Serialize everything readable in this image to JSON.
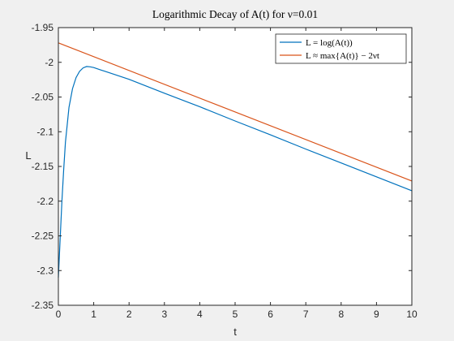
{
  "chart_data": {
    "type": "line",
    "title": "Logarithmic Decay of A(t) for ν=0.01",
    "xlabel": "t",
    "ylabel": "L",
    "xlim": [
      0,
      10
    ],
    "ylim": [
      -2.35,
      -1.95
    ],
    "xticks": [
      0,
      1,
      2,
      3,
      4,
      5,
      6,
      7,
      8,
      9,
      10
    ],
    "yticks": [
      -2.35,
      -2.3,
      -2.25,
      -2.2,
      -2.15,
      -2.1,
      -2.05,
      -2,
      -1.95
    ],
    "grid": false,
    "legend_position": "top-right",
    "series": [
      {
        "name": "L = log(A(t))",
        "color": "#0072BD",
        "x": [
          0,
          0.05,
          0.1,
          0.15,
          0.2,
          0.3,
          0.4,
          0.5,
          0.6,
          0.7,
          0.8,
          0.9,
          1.0,
          1.2,
          1.5,
          2,
          3,
          4,
          5,
          6,
          7,
          8,
          9,
          10
        ],
        "y": [
          -2.31,
          -2.255,
          -2.2,
          -2.155,
          -2.115,
          -2.065,
          -2.038,
          -2.022,
          -2.013,
          -2.008,
          -2.006,
          -2.0065,
          -2.0075,
          -2.011,
          -2.016,
          -2.0245,
          -2.0445,
          -2.064,
          -2.0845,
          -2.1045,
          -2.125,
          -2.145,
          -2.165,
          -2.185
        ]
      },
      {
        "name": "L ≈ max{A(t)} − 2νt",
        "color": "#D95319",
        "x": [
          0,
          10
        ],
        "y": [
          -1.972,
          -2.171
        ]
      }
    ]
  }
}
